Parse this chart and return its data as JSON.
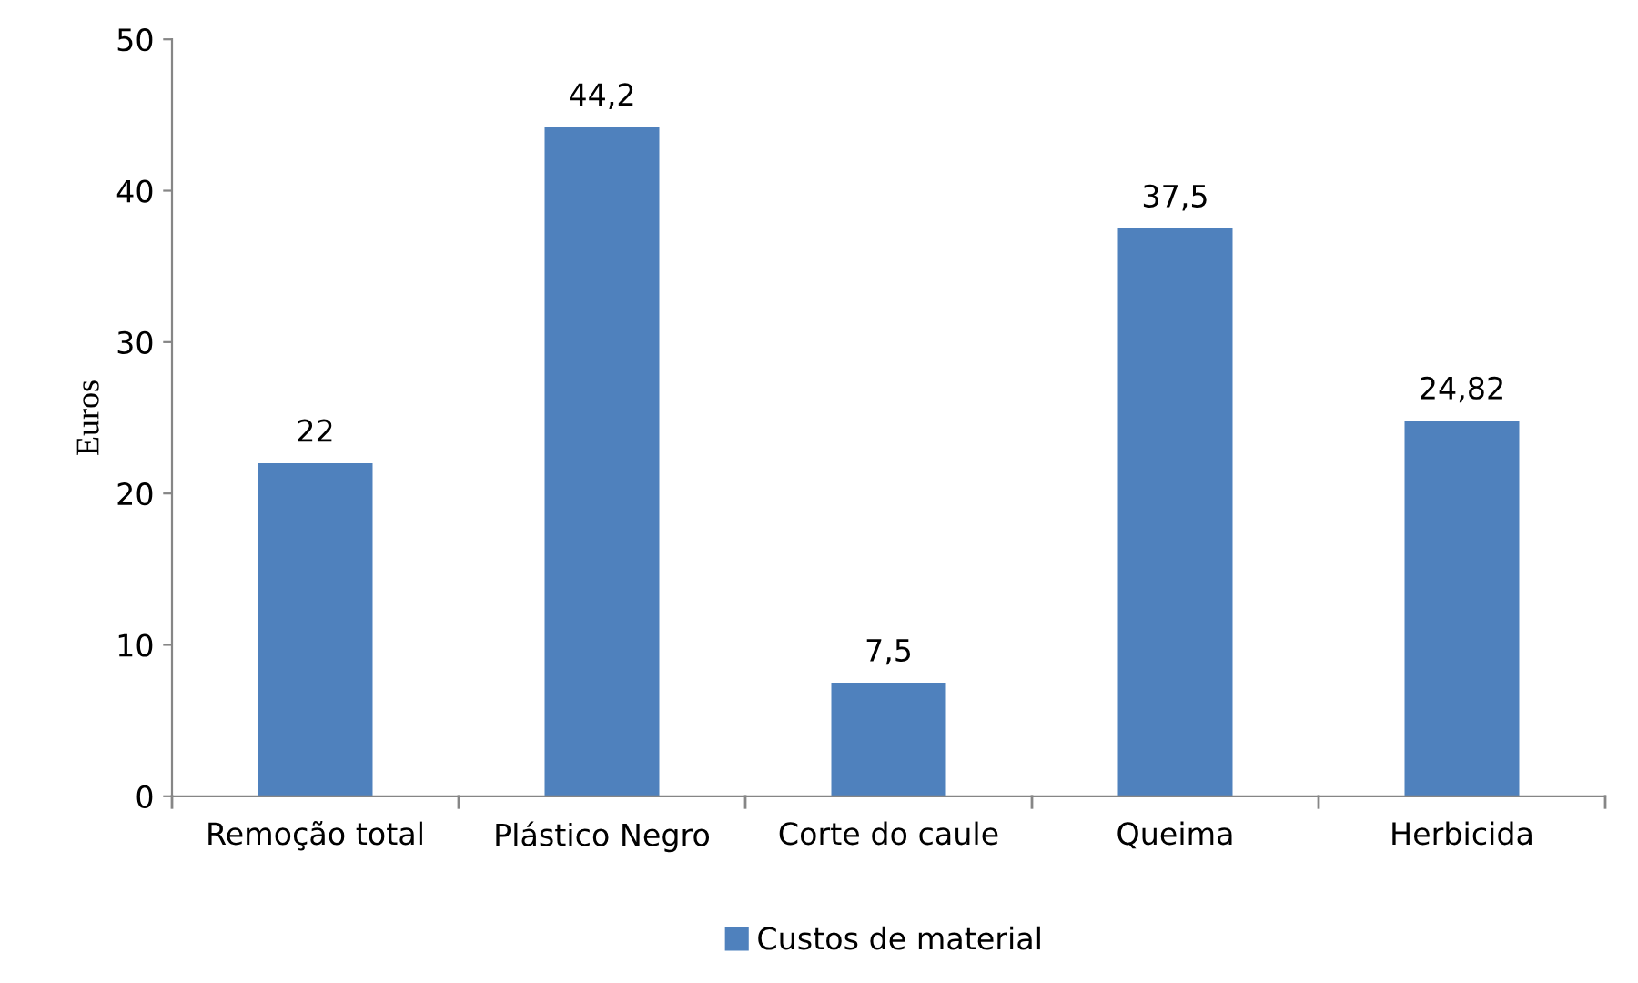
{
  "chart_data": {
    "type": "bar",
    "ylabel": "Euros",
    "categories": [
      "Remoção total",
      "Plástico Negro",
      "Corte do caule",
      "Queima",
      "Herbicida"
    ],
    "series": [
      {
        "name": "Custos de material",
        "color": "#4f81bd",
        "values": [
          22,
          44.2,
          7.5,
          37.5,
          24.82
        ],
        "value_labels": [
          "22",
          "44,2",
          "7,5",
          "37,5",
          "24,82"
        ]
      }
    ],
    "ylim": [
      0,
      50
    ],
    "yticks": [
      0,
      10,
      20,
      30,
      40,
      50
    ],
    "grid": false,
    "legend": "bottom"
  }
}
